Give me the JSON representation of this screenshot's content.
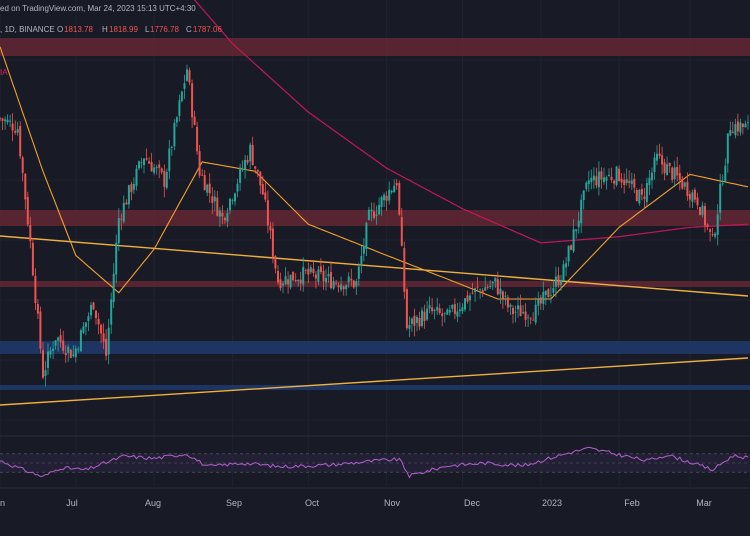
{
  "header": {
    "publish_text": "ed on TradingView.com, Mar 24, 2023 15:13 UTC+4:30",
    "symbol_text": ", 1D, BINANCE",
    "ohlc": [
      {
        "label": "O",
        "value": "1813.78"
      },
      {
        "label": "H",
        "value": "1818.99"
      },
      {
        "label": "L",
        "value": "1776.78"
      },
      {
        "label": "C",
        "value": "1787.06"
      }
    ],
    "ma_label": "IA"
  },
  "colors": {
    "background": "#181b25",
    "candle_up": "#26a69a",
    "candle_down": "#ef5350",
    "ma_fast": "#f0a030",
    "ma_slow": "#c2185b",
    "trendline": "#f0b040",
    "resistance_zone": "#6b2a36",
    "support_zone": "#1f3a6b",
    "rsi_line": "#b45fd0",
    "rsi_band": "#2a2540"
  },
  "chart_data": {
    "type": "candlestick",
    "x_axis": {
      "ticks": [
        "n",
        "Jul",
        "Aug",
        "Sep",
        "Oct",
        "Nov",
        "Dec",
        "2023",
        "Feb",
        "Mar"
      ],
      "range": [
        "2022-06-01",
        "2023-03-24"
      ]
    },
    "y_range": [
      800,
      2200
    ],
    "close_path": [
      {
        "date": "2022-06-01",
        "close": 1820
      },
      {
        "date": "2022-06-08",
        "close": 1790
      },
      {
        "date": "2022-06-13",
        "close": 1420
      },
      {
        "date": "2022-06-18",
        "close": 1000
      },
      {
        "date": "2022-06-23",
        "close": 1120
      },
      {
        "date": "2022-06-30",
        "close": 1060
      },
      {
        "date": "2022-07-08",
        "close": 1230
      },
      {
        "date": "2022-07-13",
        "close": 1060
      },
      {
        "date": "2022-07-18",
        "close": 1500
      },
      {
        "date": "2022-07-28",
        "close": 1700
      },
      {
        "date": "2022-08-05",
        "close": 1620
      },
      {
        "date": "2022-08-14",
        "close": 1980
      },
      {
        "date": "2022-08-19",
        "close": 1650
      },
      {
        "date": "2022-08-28",
        "close": 1500
      },
      {
        "date": "2022-09-08",
        "close": 1720
      },
      {
        "date": "2022-09-13",
        "close": 1580
      },
      {
        "date": "2022-09-19",
        "close": 1300
      },
      {
        "date": "2022-09-30",
        "close": 1320
      },
      {
        "date": "2022-10-10",
        "close": 1300
      },
      {
        "date": "2022-10-20",
        "close": 1290
      },
      {
        "date": "2022-10-25",
        "close": 1500
      },
      {
        "date": "2022-11-05",
        "close": 1620
      },
      {
        "date": "2022-11-09",
        "close": 1150
      },
      {
        "date": "2022-11-18",
        "close": 1200
      },
      {
        "date": "2022-11-25",
        "close": 1180
      },
      {
        "date": "2022-12-05",
        "close": 1260
      },
      {
        "date": "2022-12-14",
        "close": 1290
      },
      {
        "date": "2022-12-20",
        "close": 1200
      },
      {
        "date": "2022-12-30",
        "close": 1200
      },
      {
        "date": "2023-01-10",
        "close": 1330
      },
      {
        "date": "2023-01-20",
        "close": 1620
      },
      {
        "date": "2023-02-01",
        "close": 1640
      },
      {
        "date": "2023-02-10",
        "close": 1560
      },
      {
        "date": "2023-02-16",
        "close": 1690
      },
      {
        "date": "2023-02-25",
        "close": 1620
      },
      {
        "date": "2023-03-04",
        "close": 1560
      },
      {
        "date": "2023-03-10",
        "close": 1420
      },
      {
        "date": "2023-03-17",
        "close": 1800
      },
      {
        "date": "2023-03-24",
        "close": 1790
      }
    ],
    "ma_fast_path": [
      {
        "date": "2022-06-01",
        "ma": 2050
      },
      {
        "date": "2022-06-18",
        "ma": 1650
      },
      {
        "date": "2022-07-01",
        "ma": 1380
      },
      {
        "date": "2022-07-18",
        "ma": 1260
      },
      {
        "date": "2022-08-01",
        "ma": 1400
      },
      {
        "date": "2022-08-20",
        "ma": 1680
      },
      {
        "date": "2022-09-10",
        "ma": 1650
      },
      {
        "date": "2022-10-01",
        "ma": 1480
      },
      {
        "date": "2022-11-01",
        "ma": 1380
      },
      {
        "date": "2022-11-20",
        "ma": 1320
      },
      {
        "date": "2022-12-15",
        "ma": 1240
      },
      {
        "date": "2023-01-05",
        "ma": 1240
      },
      {
        "date": "2023-02-01",
        "ma": 1470
      },
      {
        "date": "2023-03-01",
        "ma": 1640
      },
      {
        "date": "2023-03-24",
        "ma": 1600
      }
    ],
    "ma_slow_path": [
      {
        "date": "2022-06-01",
        "ma": 3050
      },
      {
        "date": "2022-07-01",
        "ma": 2680
      },
      {
        "date": "2022-08-01",
        "ma": 2350
      },
      {
        "date": "2022-09-01",
        "ma": 2060
      },
      {
        "date": "2022-10-01",
        "ma": 1840
      },
      {
        "date": "2022-11-01",
        "ma": 1660
      },
      {
        "date": "2022-12-01",
        "ma": 1530
      },
      {
        "date": "2023-01-01",
        "ma": 1420
      },
      {
        "date": "2023-02-01",
        "ma": 1440
      },
      {
        "date": "2023-03-01",
        "ma": 1470
      },
      {
        "date": "2023-03-24",
        "ma": 1480
      }
    ],
    "trendlines": [
      {
        "from": {
          "date": "2022-06-01",
          "price": 2060
        },
        "to": {
          "date": "2023-03-24",
          "price": 1690
        }
      },
      {
        "from": {
          "date": "2022-06-01",
          "price": 930
        },
        "to": {
          "date": "2023-03-24",
          "price": 1250
        }
      }
    ],
    "zones": [
      {
        "kind": "resistance",
        "price_from": 2620,
        "price_to": 2700
      },
      {
        "kind": "resistance",
        "price_from": 2120,
        "price_to": 2190
      },
      {
        "kind": "resistance",
        "price_from": 1820,
        "price_to": 1840
      },
      {
        "kind": "support",
        "price_from": 1250,
        "price_to": 1320
      },
      {
        "kind": "support",
        "price_from": 1050,
        "price_to": 1065
      }
    ],
    "rsi": {
      "range": [
        0,
        100
      ],
      "band": [
        30,
        70
      ],
      "path": [
        {
          "date": "2022-06-01",
          "rsi": 55
        },
        {
          "date": "2022-06-08",
          "rsi": 40
        },
        {
          "date": "2022-06-18",
          "rsi": 20
        },
        {
          "date": "2022-06-25",
          "rsi": 40
        },
        {
          "date": "2022-07-05",
          "rsi": 35
        },
        {
          "date": "2022-07-20",
          "rsi": 65
        },
        {
          "date": "2022-08-01",
          "rsi": 60
        },
        {
          "date": "2022-08-14",
          "rsi": 70
        },
        {
          "date": "2022-08-22",
          "rsi": 42
        },
        {
          "date": "2022-09-05",
          "rsi": 50
        },
        {
          "date": "2022-09-20",
          "rsi": 42
        },
        {
          "date": "2022-10-10",
          "rsi": 46
        },
        {
          "date": "2022-10-28",
          "rsi": 55
        },
        {
          "date": "2022-11-06",
          "rsi": 58
        },
        {
          "date": "2022-11-10",
          "rsi": 22
        },
        {
          "date": "2022-11-25",
          "rsi": 44
        },
        {
          "date": "2022-12-10",
          "rsi": 50
        },
        {
          "date": "2022-12-25",
          "rsi": 44
        },
        {
          "date": "2023-01-12",
          "rsi": 72
        },
        {
          "date": "2023-01-20",
          "rsi": 82
        },
        {
          "date": "2023-02-01",
          "rsi": 68
        },
        {
          "date": "2023-02-12",
          "rsi": 55
        },
        {
          "date": "2023-02-20",
          "rsi": 68
        },
        {
          "date": "2023-03-01",
          "rsi": 52
        },
        {
          "date": "2023-03-10",
          "rsi": 35
        },
        {
          "date": "2023-03-18",
          "rsi": 66
        },
        {
          "date": "2023-03-24",
          "rsi": 62
        }
      ]
    }
  }
}
